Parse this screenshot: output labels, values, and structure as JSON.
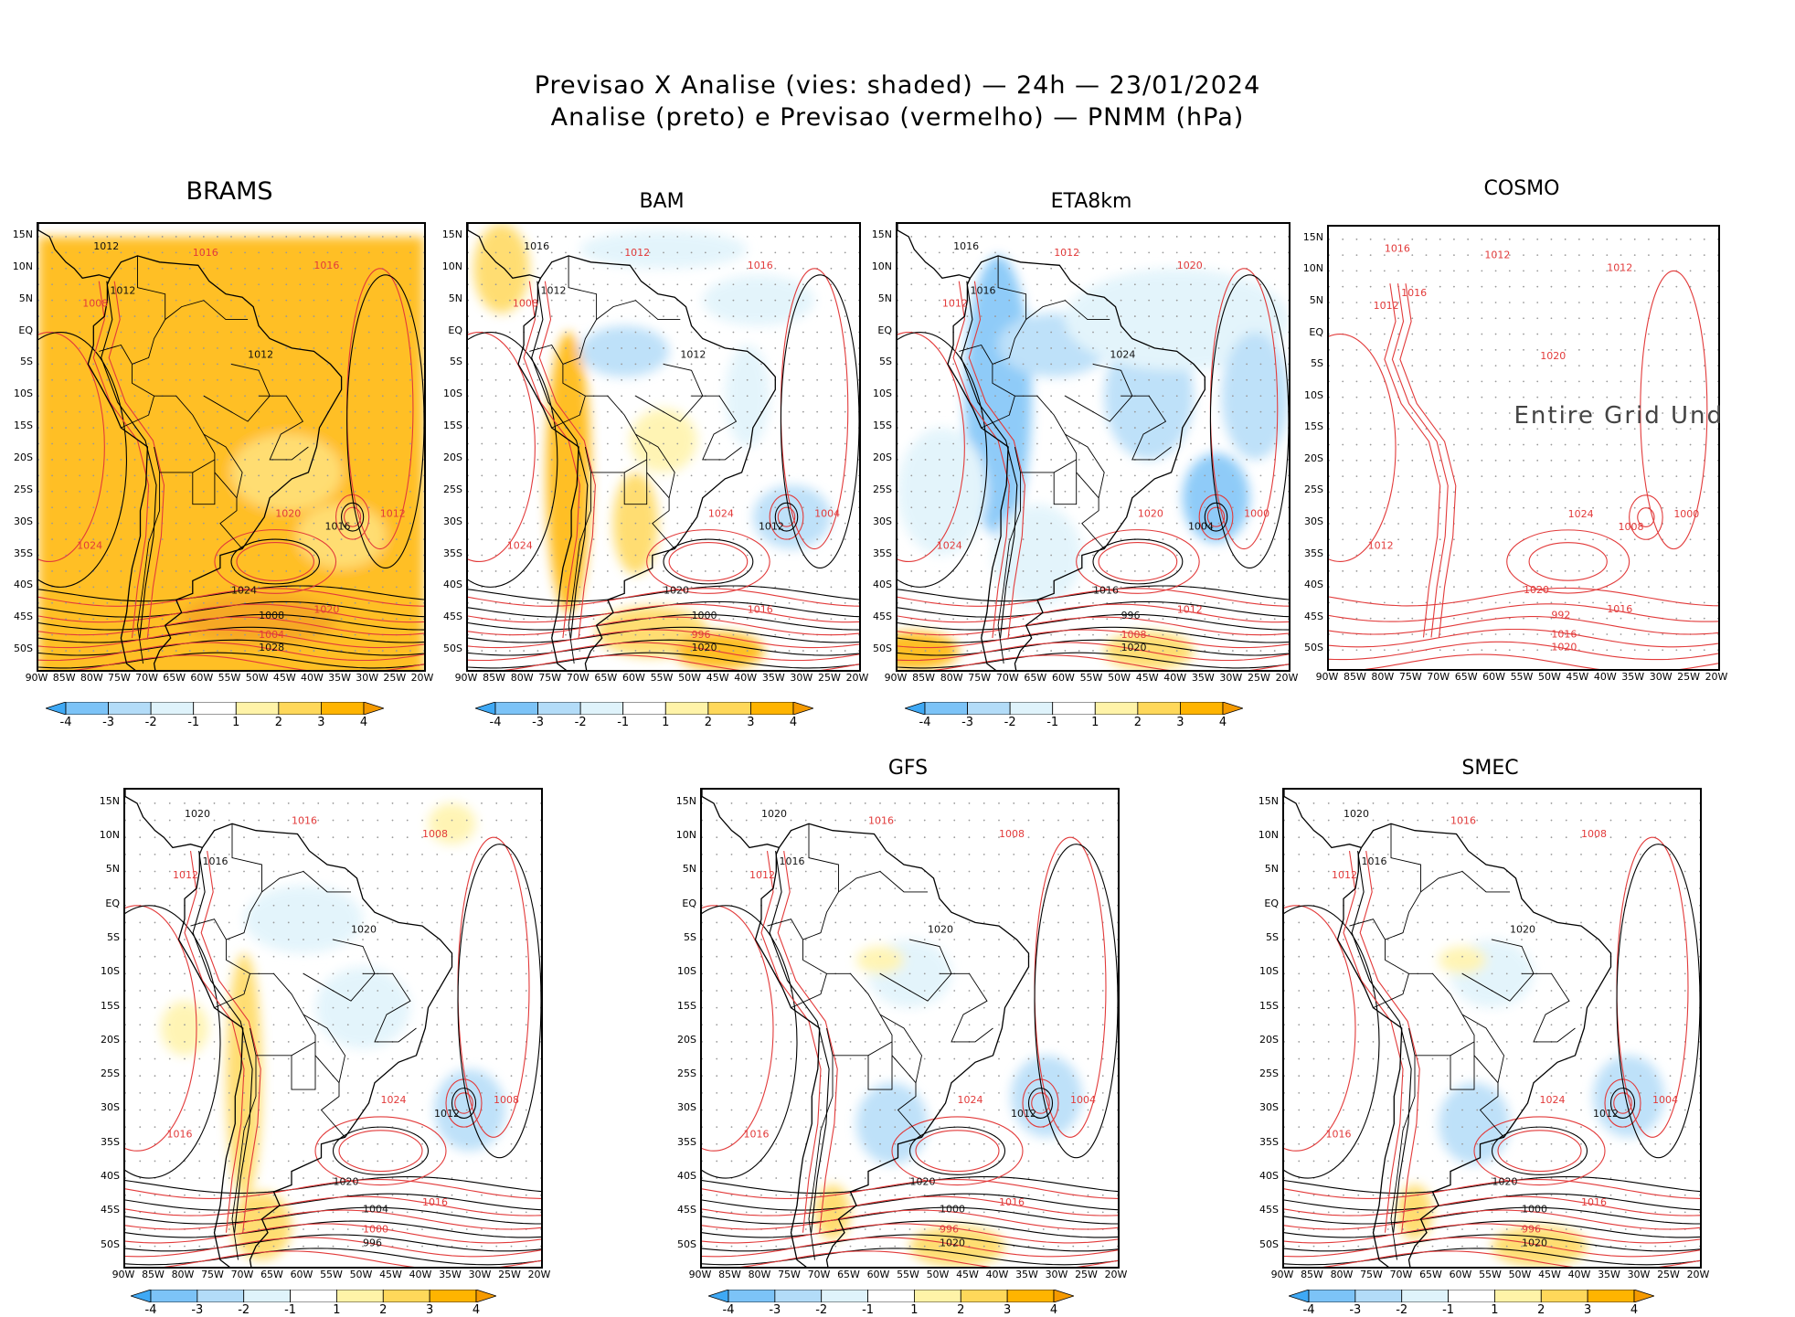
{
  "header": {
    "line1": "Previsao X Analise (vies: shaded) — 24h — 23/01/2024",
    "line2": "Analise (preto) e Previsao (vermelho) — PNMM (hPa)"
  },
  "axes": {
    "lat_labels": [
      "15N",
      "10N",
      "5N",
      "EQ",
      "5S",
      "10S",
      "15S",
      "20S",
      "25S",
      "30S",
      "35S",
      "40S",
      "45S",
      "50S"
    ],
    "lon_labels": [
      "90W",
      "85W",
      "80W",
      "75W",
      "70W",
      "65W",
      "60W",
      "55W",
      "50W",
      "45W",
      "40W",
      "35W",
      "30W",
      "25W",
      "20W"
    ]
  },
  "colorbar": {
    "labels": [
      "-4",
      "-3",
      "-2",
      "-1",
      "1",
      "2",
      "3",
      "4"
    ],
    "colors": [
      "#3fa9f5",
      "#7cc3f7",
      "#b3dcf8",
      "#dff3fb",
      "#ffffff",
      "#fff3a8",
      "#ffd85a",
      "#ffb400",
      "#f59a00"
    ]
  },
  "contour_colors": {
    "analysis": "#000000",
    "forecast": "#e23a3a"
  },
  "panels": [
    {
      "id": "brams",
      "title": "BRAMS",
      "bias": "warm-uniform",
      "labels": [
        "1012",
        "1016",
        "1020",
        "1016",
        "1012",
        "1008",
        "1012",
        "1020",
        "1024",
        "1020",
        "1016",
        "1012",
        "1008",
        "1004",
        "1028",
        "1024"
      ]
    },
    {
      "id": "bam",
      "title": "BAM",
      "bias": "mixed",
      "labels": [
        "1016",
        "1012",
        "1020",
        "1016",
        "1012",
        "1008",
        "1012",
        "1024",
        "1020",
        "1016",
        "1012",
        "1004",
        "1000",
        "996",
        "1020",
        "1024"
      ]
    },
    {
      "id": "eta",
      "title": "ETA8km",
      "bias": "cool",
      "labels": [
        "1016",
        "1012",
        "1008",
        "1020",
        "1016",
        "1012",
        "1024",
        "1020",
        "1016",
        "1012",
        "1004",
        "1000",
        "996",
        "1008",
        "1020",
        "1024"
      ]
    },
    {
      "id": "cosmo",
      "title": "COSMO",
      "bias": "undefined",
      "message": "Entire Grid Und",
      "labels": [
        "1016",
        "1012",
        "1008",
        "1012",
        "1016",
        "1012",
        "1020",
        "1024",
        "1020",
        "1016",
        "1008",
        "1000",
        "992",
        "1016",
        "1020",
        "1012"
      ]
    },
    {
      "id": "wrf",
      "title": "",
      "bias": "mixed-light",
      "labels": [
        "1020",
        "1016",
        "1012",
        "1008",
        "1016",
        "1012",
        "1020",
        "1024",
        "1020",
        "1016",
        "1012",
        "1008",
        "1004",
        "1000",
        "996",
        "1016"
      ]
    },
    {
      "id": "gfs",
      "title": "GFS",
      "bias": "light-cool",
      "labels": [
        "1020",
        "1016",
        "1012",
        "1008",
        "1016",
        "1012",
        "1020",
        "1024",
        "1020",
        "1016",
        "1012",
        "1004",
        "1000",
        "996",
        "1020",
        "1016"
      ]
    },
    {
      "id": "smec",
      "title": "SMEC",
      "bias": "light-cool",
      "labels": [
        "1020",
        "1016",
        "1012",
        "1008",
        "1016",
        "1012",
        "1020",
        "1024",
        "1020",
        "1016",
        "1012",
        "1004",
        "1000",
        "996",
        "1020",
        "1016"
      ]
    }
  ]
}
